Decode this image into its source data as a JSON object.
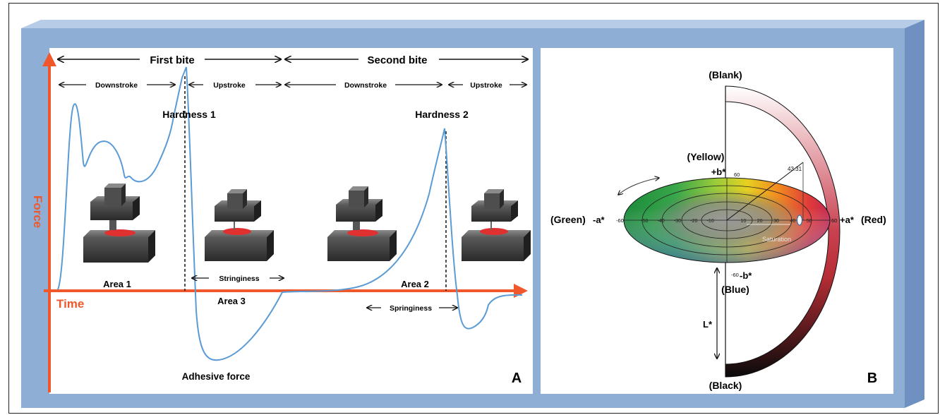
{
  "panel_a": {
    "letter": "A",
    "axes": {
      "y_label": "Force",
      "x_label": "Time"
    },
    "bites": {
      "first": "First bite",
      "second": "Second bite"
    },
    "strokes": {
      "down1": "Downstroke",
      "up1": "Upstroke",
      "down2": "Downstroke",
      "up2": "Upstroke"
    },
    "labels": {
      "hardness1": "Hardness 1",
      "hardness2": "Hardness 2",
      "area1": "Area 1",
      "area2": "Area 2",
      "area3": "Area 3",
      "stringiness": "Stringiness",
      "springiness": "Springiness",
      "adhesive": "Adhesive force"
    },
    "colors": {
      "curve": "#5b9bd5",
      "axis": "#f0582c",
      "probe_top": "#6b6b6b",
      "sample": "#e03030"
    }
  },
  "panel_b": {
    "letter": "B",
    "labels": {
      "blank": "(Blank)",
      "black": "(Black)",
      "yellow": "(Yellow)",
      "blue": "(Blue)",
      "green": "(Green)",
      "red": "(Red)",
      "plus_b": "+b*",
      "minus_b": "-b*",
      "minus_a": "-a*",
      "plus_a": "+a*",
      "lstar": "L*",
      "saturation": "Saturation",
      "hue_angle": "43.31"
    },
    "ticks": {
      "top": "60",
      "bottom": "-60",
      "left": "-60",
      "right": "60",
      "a_axis": [
        "-50",
        "-40",
        "-30",
        "-20",
        "-10",
        "10",
        "20",
        "30",
        "40",
        "50"
      ]
    }
  },
  "frame": {
    "bg": "#8eaed6",
    "top": "#b7cce6",
    "side": "#6f91c1"
  }
}
